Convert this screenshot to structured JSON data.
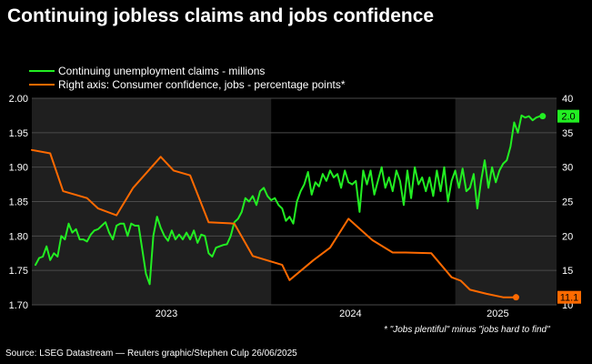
{
  "title": "Continuing jobless claims and jobs confidence",
  "source": "Source: LSEG Datastream — Reuters graphic/Stephen Culp 26/06/2025",
  "footnote": "* \"Jobs plentiful\" minus \"jobs hard to find\"",
  "colors": {
    "claims": "#22ee22",
    "confidence": "#ff6a00",
    "background": "#000000",
    "band": "#1f1f1f",
    "grid": "#4a4a4a"
  },
  "chart_data": {
    "type": "line",
    "x_ticks": [
      "2023",
      "2024",
      "2025"
    ],
    "left_axis": {
      "ylim": [
        1.7,
        2.0
      ],
      "ticks": [
        "1.70",
        "1.75",
        "1.80",
        "1.85",
        "1.90",
        "1.95",
        "2.00"
      ]
    },
    "right_axis": {
      "ylim": [
        10,
        40
      ],
      "ticks": [
        "10",
        "15",
        "20",
        "25",
        "30",
        "35",
        "40"
      ]
    },
    "legend": {
      "placement": "top-left"
    },
    "end_labels": {
      "claims": "2.0",
      "confidence": "11.1"
    },
    "series": [
      {
        "name": "Continuing unemployment claims - millions",
        "axis": "left",
        "x": [
          2022.72,
          2022.74,
          2022.76,
          2022.78,
          2022.8,
          2022.82,
          2022.84,
          2022.86,
          2022.88,
          2022.9,
          2022.92,
          2022.94,
          2022.96,
          2022.98,
          2023.0,
          2023.02,
          2023.04,
          2023.06,
          2023.08,
          2023.1,
          2023.12,
          2023.14,
          2023.16,
          2023.18,
          2023.2,
          2023.22,
          2023.24,
          2023.26,
          2023.28,
          2023.3,
          2023.32,
          2023.34,
          2023.36,
          2023.38,
          2023.4,
          2023.42,
          2023.44,
          2023.46,
          2023.48,
          2023.5,
          2023.52,
          2023.54,
          2023.56,
          2023.58,
          2023.6,
          2023.62,
          2023.64,
          2023.66,
          2023.68,
          2023.7,
          2023.72,
          2023.74,
          2023.76,
          2023.78,
          2023.8,
          2023.82,
          2023.84,
          2023.86,
          2023.88,
          2023.9,
          2023.92,
          2023.94,
          2023.96,
          2023.98,
          2024.0,
          2024.02,
          2024.04,
          2024.06,
          2024.08,
          2024.1,
          2024.12,
          2024.14,
          2024.16,
          2024.18,
          2024.2,
          2024.22,
          2024.24,
          2024.26,
          2024.28,
          2024.3,
          2024.32,
          2024.34,
          2024.36,
          2024.38,
          2024.4,
          2024.42,
          2024.44,
          2024.46,
          2024.48,
          2024.5,
          2024.52,
          2024.54,
          2024.56,
          2024.58,
          2024.6,
          2024.62,
          2024.64,
          2024.66,
          2024.68,
          2024.7,
          2024.72,
          2024.74,
          2024.76,
          2024.78,
          2024.8,
          2024.82,
          2024.84,
          2024.86,
          2024.88,
          2024.9,
          2024.92,
          2024.94,
          2024.96,
          2024.98,
          2025.0,
          2025.02,
          2025.04,
          2025.06,
          2025.08,
          2025.1,
          2025.12,
          2025.14,
          2025.16,
          2025.18,
          2025.2,
          2025.22,
          2025.24,
          2025.26,
          2025.28,
          2025.3,
          2025.32,
          2025.34,
          2025.36,
          2025.38,
          2025.4,
          2025.42,
          2025.44,
          2025.46
        ],
        "values": [
          1.758,
          1.768,
          1.77,
          1.785,
          1.765,
          1.775,
          1.77,
          1.8,
          1.795,
          1.818,
          1.805,
          1.81,
          1.795,
          1.795,
          1.792,
          1.802,
          1.808,
          1.81,
          1.815,
          1.82,
          1.805,
          1.795,
          1.815,
          1.818,
          1.818,
          1.8,
          1.818,
          1.815,
          1.815,
          1.78,
          1.745,
          1.73,
          1.8,
          1.828,
          1.812,
          1.8,
          1.793,
          1.808,
          1.795,
          1.802,
          1.795,
          1.805,
          1.795,
          1.808,
          1.79,
          1.802,
          1.8,
          1.775,
          1.77,
          1.783,
          1.785,
          1.787,
          1.788,
          1.8,
          1.82,
          1.825,
          1.835,
          1.855,
          1.85,
          1.858,
          1.845,
          1.865,
          1.87,
          1.858,
          1.852,
          1.855,
          1.845,
          1.84,
          1.822,
          1.828,
          1.818,
          1.85,
          1.865,
          1.875,
          1.893,
          1.86,
          1.878,
          1.872,
          1.89,
          1.88,
          1.895,
          1.885,
          1.89,
          1.87,
          1.895,
          1.878,
          1.875,
          1.88,
          1.835,
          1.895,
          1.875,
          1.895,
          1.86,
          1.88,
          1.9,
          1.87,
          1.885,
          1.865,
          1.895,
          1.88,
          1.845,
          1.895,
          1.855,
          1.9,
          1.875,
          1.885,
          1.865,
          1.885,
          1.858,
          1.895,
          1.865,
          1.9,
          1.85,
          1.88,
          1.895,
          1.87,
          1.898,
          1.865,
          1.87,
          1.89,
          1.84,
          1.88,
          1.91,
          1.87,
          1.9,
          1.878,
          1.895,
          1.905,
          1.91,
          1.93,
          1.965,
          1.95,
          1.975,
          1.972,
          1.974,
          1.968,
          1.972,
          1.974
        ],
        "end_value": 1.974
      },
      {
        "name": "Right axis: Consumer confidence, jobs - percentage points*",
        "axis": "right",
        "x": [
          2022.7,
          2022.8,
          2022.87,
          2023.0,
          2023.06,
          2023.16,
          2023.25,
          2023.4,
          2023.47,
          2023.56,
          2023.66,
          2023.8,
          2023.9,
          2024.06,
          2024.1,
          2024.23,
          2024.32,
          2024.42,
          2024.55,
          2024.66,
          2024.73,
          2024.87,
          2024.98,
          2025.03,
          2025.08,
          2025.17,
          2025.26,
          2025.33
        ],
        "values": [
          32.5,
          32.0,
          26.5,
          25.5,
          24.0,
          23.0,
          27.0,
          31.5,
          29.5,
          28.8,
          22.0,
          21.8,
          17.1,
          15.8,
          13.6,
          16.5,
          18.3,
          22.5,
          19.4,
          17.6,
          17.6,
          17.5,
          14.0,
          13.5,
          12.2,
          11.6,
          11.1,
          11.1
        ],
        "end_value": 11.1
      }
    ]
  }
}
